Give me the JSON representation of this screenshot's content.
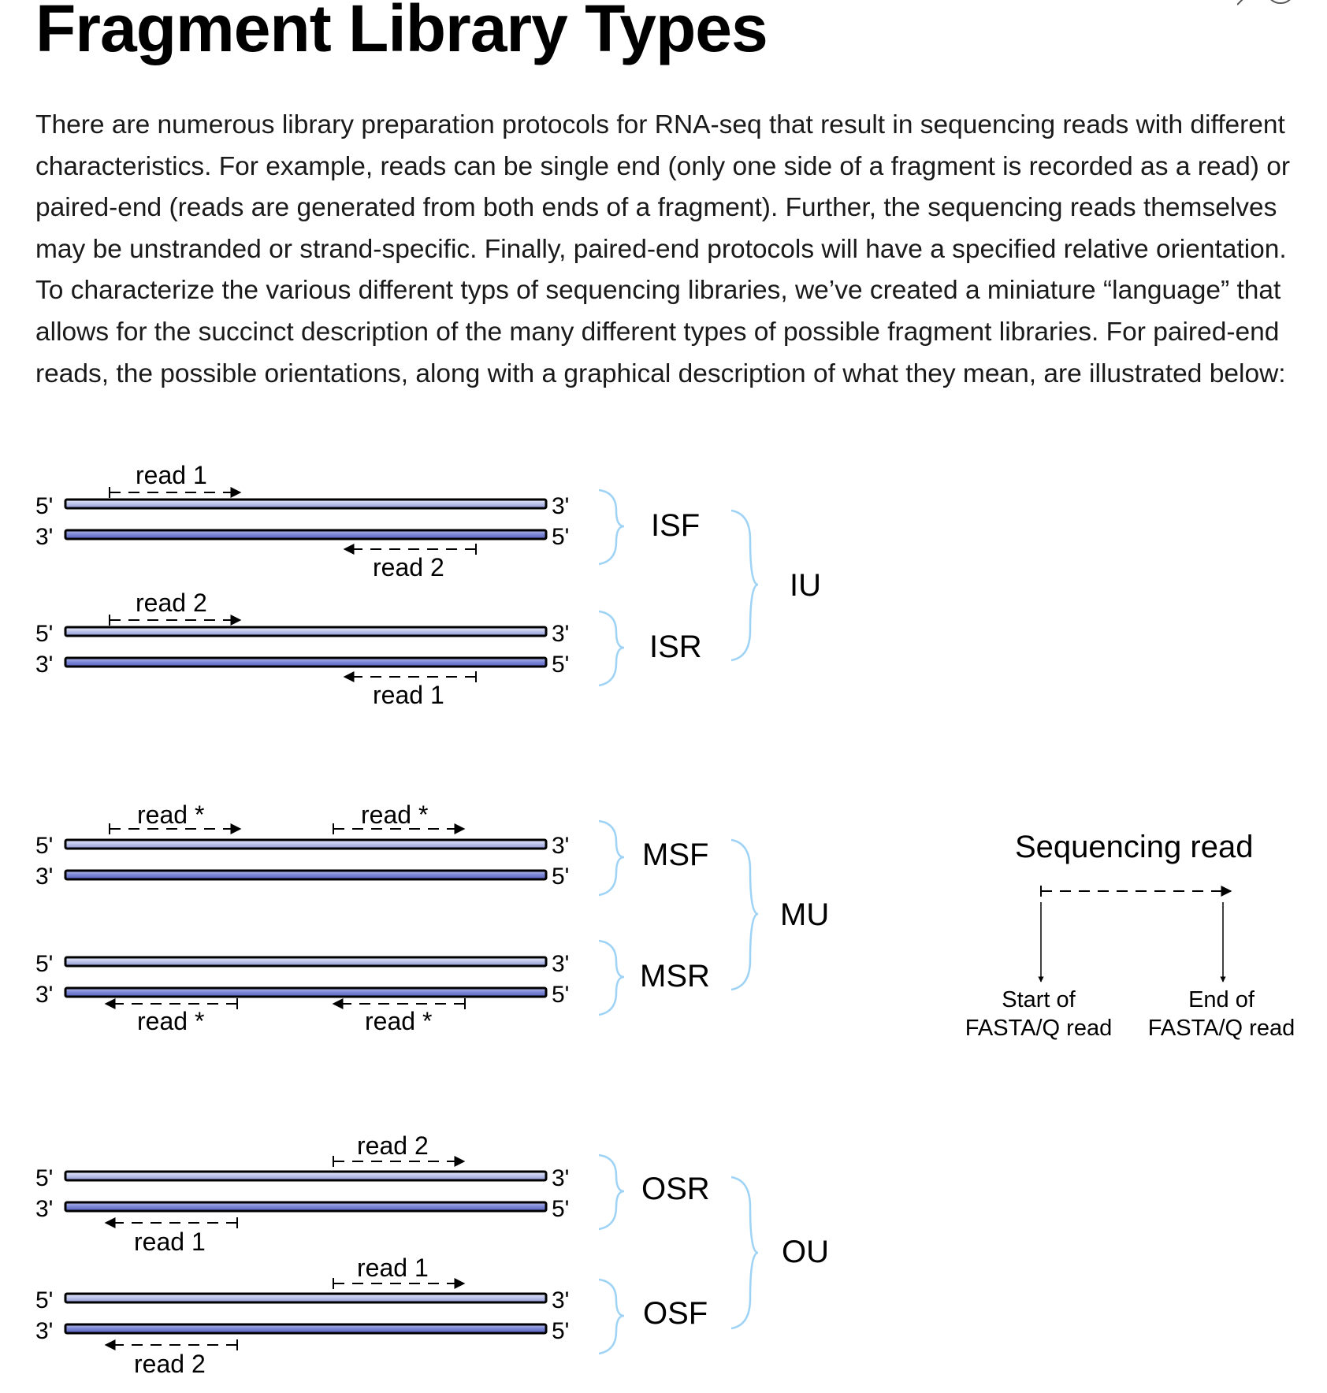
{
  "page": {
    "title": "Fragment Library Types",
    "intro": "There are numerous library preparation protocols for RNA-seq that result in sequencing reads with different characteristics. For example, reads can be single end (only one side of a fragment is recorded as a read) or paired-end (reads are generated from both ends of a fragment). Further, the sequencing reads themselves may be unstranded or strand-specific. Finally, paired-end protocols will have a specified relative orientation. To characterize the various different typs of sequencing libraries, we’ve created a miniature “language” that allows for the succinct description of the many different types of possible fragment libraries. For paired-end reads, the possible orientations, along with a graphical description of what they mean, are illustrated below:"
  },
  "diagram": {
    "ends": {
      "five": "5'",
      "three": "3'"
    },
    "colors": {
      "strand_fill": "#b8bfe6",
      "strand_fill_bottom": "#7d86d6",
      "brace": "#9fd3f5",
      "line": "#000000"
    },
    "groups": {
      "iu": {
        "label": "IU",
        "isf": {
          "label": "ISF",
          "top_read": "read 1",
          "bottom_read": "read 2"
        },
        "isr": {
          "label": "ISR",
          "top_read": "read 2",
          "bottom_read": "read 1"
        }
      },
      "mu": {
        "label": "MU",
        "msf": {
          "label": "MSF",
          "read_a": "read *",
          "read_b": "read *"
        },
        "msr": {
          "label": "MSR",
          "read_a": "read *",
          "read_b": "read *"
        }
      },
      "ou": {
        "label": "OU",
        "osr": {
          "label": "OSR",
          "top_read": "read 2",
          "bottom_read": "read 1"
        },
        "osf": {
          "label": "OSF",
          "top_read": "read 1",
          "bottom_read": "read 2"
        }
      }
    },
    "legend": {
      "title": "Sequencing read",
      "start_line1": "Start of",
      "start_line2": "FASTA/Q read",
      "end_line1": "End of",
      "end_line2": "FASTA/Q read"
    }
  }
}
